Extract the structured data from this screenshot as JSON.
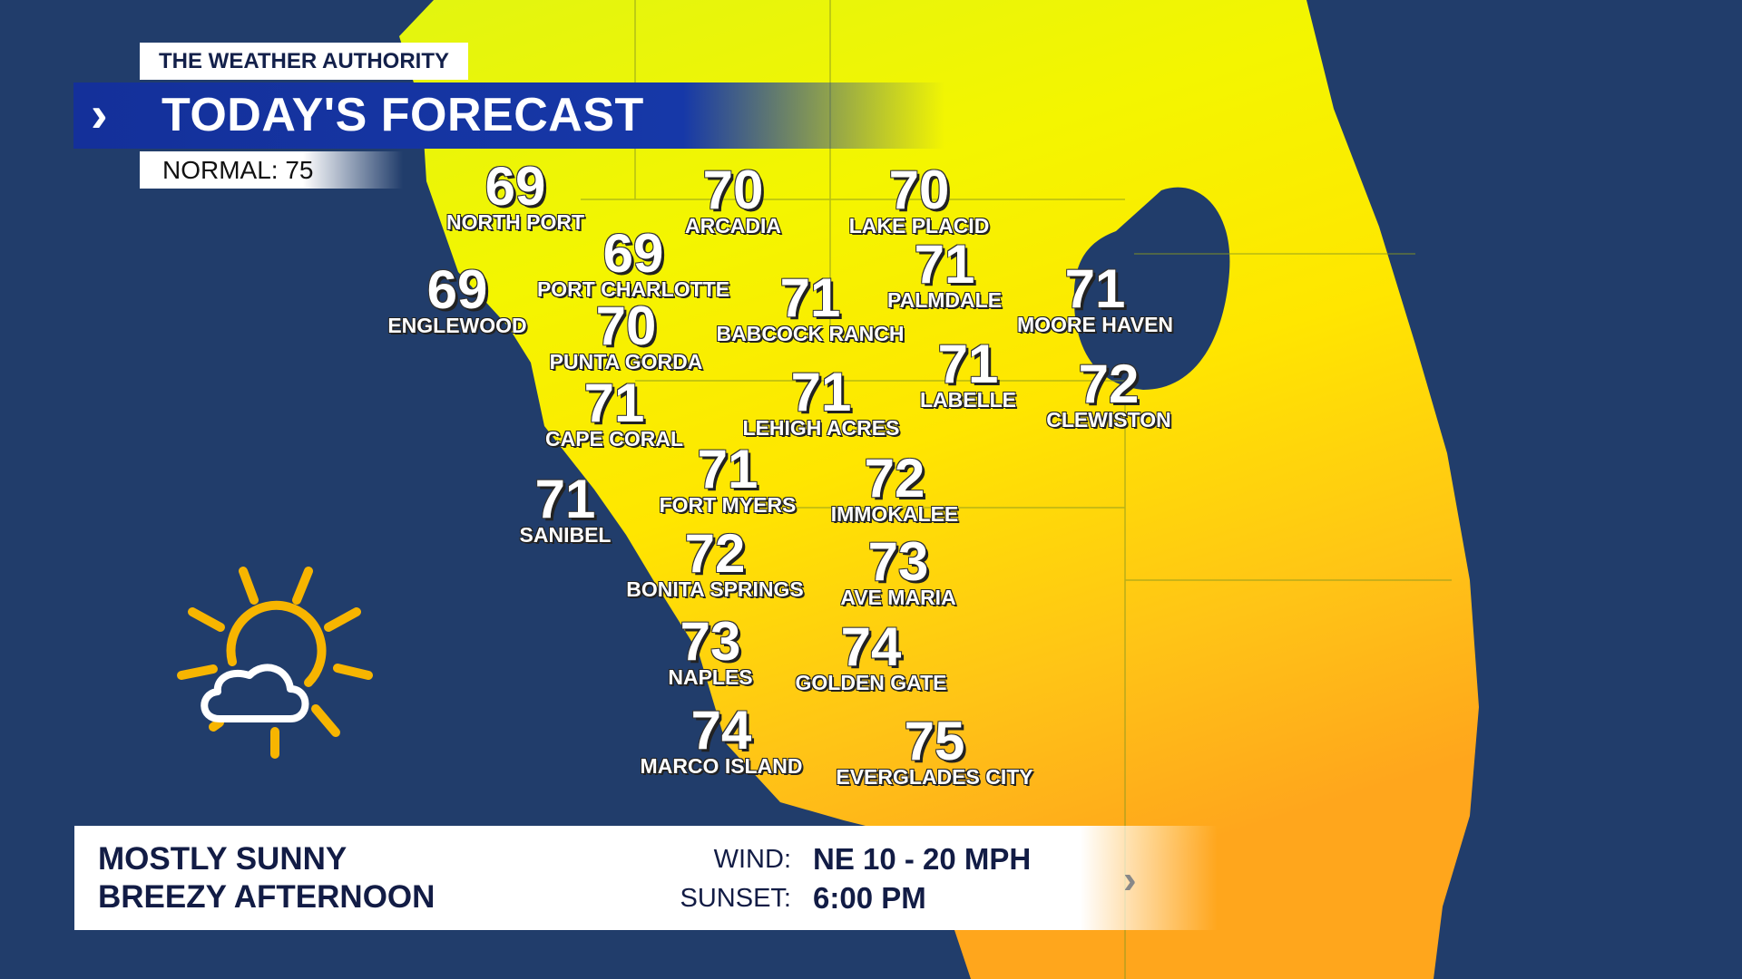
{
  "header": {
    "brand": "THE WEATHER AUTHORITY",
    "title": "TODAY'S FORECAST",
    "chevron": "›",
    "normal": "NORMAL: 75"
  },
  "cities": [
    {
      "name": "NORTH PORT",
      "temp": "69"
    },
    {
      "name": "ARCADIA",
      "temp": "70"
    },
    {
      "name": "LAKE PLACID",
      "temp": "70"
    },
    {
      "name": "PORT CHARLOTTE",
      "temp": "69"
    },
    {
      "name": "ENGLEWOOD",
      "temp": "69"
    },
    {
      "name": "PALMDALE",
      "temp": "71"
    },
    {
      "name": "MOORE HAVEN",
      "temp": "71"
    },
    {
      "name": "BABCOCK RANCH",
      "temp": "71"
    },
    {
      "name": "PUNTA GORDA",
      "temp": "70"
    },
    {
      "name": "LABELLE",
      "temp": "71"
    },
    {
      "name": "CLEWISTON",
      "temp": "72"
    },
    {
      "name": "CAPE CORAL",
      "temp": "71"
    },
    {
      "name": "LEHIGH ACRES",
      "temp": "71"
    },
    {
      "name": "FORT MYERS",
      "temp": "71"
    },
    {
      "name": "IMMOKALEE",
      "temp": "72"
    },
    {
      "name": "SANIBEL",
      "temp": "71"
    },
    {
      "name": "BONITA SPRINGS",
      "temp": "72"
    },
    {
      "name": "AVE MARIA",
      "temp": "73"
    },
    {
      "name": "NAPLES",
      "temp": "73"
    },
    {
      "name": "GOLDEN GATE",
      "temp": "74"
    },
    {
      "name": "MARCO ISLAND",
      "temp": "74"
    },
    {
      "name": "EVERGLADES CITY",
      "temp": "75"
    }
  ],
  "panel": {
    "line1": "MOSTLY SUNNY",
    "line2": "BREEZY AFTERNOON",
    "wind_label": "WIND:",
    "wind_value": "NE  10 - 20 MPH",
    "sunset_label": "SUNSET:",
    "sunset_value": "6:00 PM",
    "chevron": "›"
  },
  "icon": {
    "condition": "partly-sunny-icon"
  },
  "colors": {
    "water": "#213d6b",
    "land_north": "#e2f510",
    "land_mid": "#fff200",
    "land_south": "#ffb41c",
    "header_blue": "#1638a8",
    "text_navy": "#121c45",
    "sun": "#f7b500"
  }
}
